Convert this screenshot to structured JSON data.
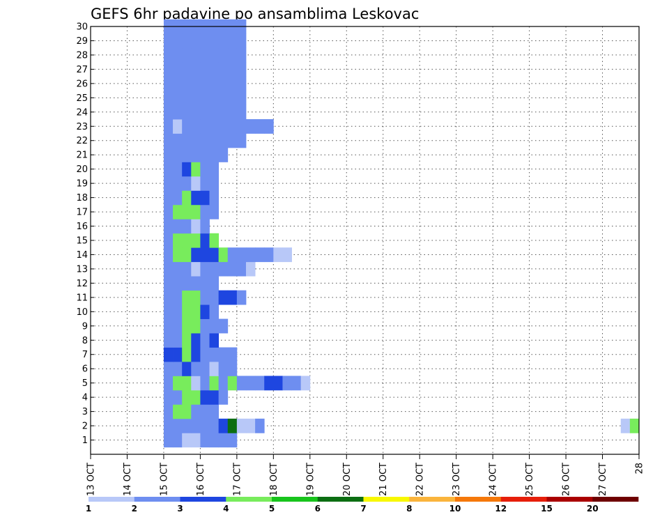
{
  "chart_data": {
    "type": "heatmap",
    "title": "GEFS 6hr padavine po ansamblima Leskovac",
    "x_tick_labels": [
      "13 OCT",
      "14 OCT",
      "15 OCT",
      "16 OCT",
      "17 OCT",
      "18 OCT",
      "19 OCT",
      "20 OCT",
      "21 OCT",
      "22 OCT",
      "23 OCT",
      "24 OCT",
      "25 OCT",
      "26 OCT",
      "27 OCT",
      "28"
    ],
    "x_range_days": [
      0,
      15
    ],
    "time_step_hours": 6,
    "y_tick_labels": [
      "1",
      "2",
      "3",
      "4",
      "5",
      "6",
      "7",
      "8",
      "9",
      "10",
      "11",
      "12",
      "13",
      "14",
      "15",
      "16",
      "17",
      "18",
      "19",
      "20",
      "21",
      "22",
      "23",
      "24",
      "25",
      "26",
      "27",
      "28",
      "29",
      "30"
    ],
    "y_range": [
      0,
      30
    ],
    "grid": true,
    "colorbar": {
      "levels": [
        "1",
        "2",
        "3",
        "4",
        "5",
        "6",
        "7",
        "8",
        "10",
        "12",
        "15",
        "20"
      ],
      "colors": [
        "#b8c8f8",
        "#6e8ef0",
        "#1e46e0",
        "#78ec5c",
        "#18c41c",
        "#0c6e12",
        "#f8f800",
        "#fab43c",
        "#f5780a",
        "#e61e0a",
        "#aa0000",
        "#6e0000"
      ]
    },
    "cells": [
      [
        1,
        2.0,
        1
      ],
      [
        1,
        2.25,
        1
      ],
      [
        1,
        2.5,
        0
      ],
      [
        1,
        2.75,
        0
      ],
      [
        1,
        3.0,
        1
      ],
      [
        1,
        3.25,
        1
      ],
      [
        1,
        3.5,
        1
      ],
      [
        1,
        3.75,
        1
      ],
      [
        2,
        2.0,
        1
      ],
      [
        2,
        2.25,
        1
      ],
      [
        2,
        2.5,
        1
      ],
      [
        2,
        2.75,
        1
      ],
      [
        2,
        3.0,
        1
      ],
      [
        2,
        3.25,
        1
      ],
      [
        2,
        3.5,
        2
      ],
      [
        2,
        3.75,
        5
      ],
      [
        2,
        4.0,
        0
      ],
      [
        2,
        4.25,
        0
      ],
      [
        2,
        4.5,
        1
      ],
      [
        2,
        14.5,
        0
      ],
      [
        2,
        14.75,
        3
      ],
      [
        3,
        2.0,
        1
      ],
      [
        3,
        2.25,
        3
      ],
      [
        3,
        2.5,
        3
      ],
      [
        3,
        2.75,
        1
      ],
      [
        3,
        3.0,
        1
      ],
      [
        3,
        3.25,
        1
      ],
      [
        4,
        2.0,
        1
      ],
      [
        4,
        2.25,
        1
      ],
      [
        4,
        2.5,
        3
      ],
      [
        4,
        2.75,
        3
      ],
      [
        4,
        3.0,
        2
      ],
      [
        4,
        3.25,
        2
      ],
      [
        4,
        3.5,
        1
      ],
      [
        5,
        2.0,
        1
      ],
      [
        5,
        2.25,
        3
      ],
      [
        5,
        2.5,
        3
      ],
      [
        5,
        2.75,
        0
      ],
      [
        5,
        3.0,
        1
      ],
      [
        5,
        3.25,
        3
      ],
      [
        5,
        3.5,
        1
      ],
      [
        5,
        3.75,
        3
      ],
      [
        5,
        4.0,
        1
      ],
      [
        5,
        4.25,
        1
      ],
      [
        5,
        4.5,
        1
      ],
      [
        5,
        4.75,
        2
      ],
      [
        5,
        5.0,
        2
      ],
      [
        5,
        5.25,
        1
      ],
      [
        5,
        5.5,
        1
      ],
      [
        5,
        5.75,
        0
      ],
      [
        6,
        2.0,
        1
      ],
      [
        6,
        2.25,
        1
      ],
      [
        6,
        2.5,
        2
      ],
      [
        6,
        2.75,
        1
      ],
      [
        6,
        3.0,
        1
      ],
      [
        6,
        3.25,
        0
      ],
      [
        6,
        3.5,
        1
      ],
      [
        6,
        3.75,
        1
      ],
      [
        7,
        2.0,
        2
      ],
      [
        7,
        2.25,
        2
      ],
      [
        7,
        2.5,
        3
      ],
      [
        7,
        2.75,
        2
      ],
      [
        7,
        3.0,
        1
      ],
      [
        7,
        3.25,
        1
      ],
      [
        7,
        3.5,
        1
      ],
      [
        7,
        3.75,
        1
      ],
      [
        8,
        2.0,
        1
      ],
      [
        8,
        2.25,
        1
      ],
      [
        8,
        2.5,
        3
      ],
      [
        8,
        2.75,
        2
      ],
      [
        8,
        3.0,
        1
      ],
      [
        8,
        3.25,
        2
      ],
      [
        9,
        2.0,
        1
      ],
      [
        9,
        2.25,
        1
      ],
      [
        9,
        2.5,
        3
      ],
      [
        9,
        2.75,
        3
      ],
      [
        9,
        3.0,
        1
      ],
      [
        9,
        3.25,
        1
      ],
      [
        9,
        3.5,
        1
      ],
      [
        10,
        2.0,
        1
      ],
      [
        10,
        2.25,
        1
      ],
      [
        10,
        2.5,
        3
      ],
      [
        10,
        2.75,
        3
      ],
      [
        10,
        3.0,
        2
      ],
      [
        10,
        3.25,
        1
      ],
      [
        11,
        2.0,
        1
      ],
      [
        11,
        2.25,
        1
      ],
      [
        11,
        2.5,
        3
      ],
      [
        11,
        2.75,
        3
      ],
      [
        11,
        3.0,
        1
      ],
      [
        11,
        3.25,
        1
      ],
      [
        11,
        3.5,
        2
      ],
      [
        11,
        3.75,
        2
      ],
      [
        11,
        4.0,
        1
      ],
      [
        12,
        2.0,
        1
      ],
      [
        12,
        2.25,
        1
      ],
      [
        12,
        2.5,
        1
      ],
      [
        12,
        2.75,
        1
      ],
      [
        12,
        3.0,
        1
      ],
      [
        12,
        3.25,
        1
      ],
      [
        13,
        2.0,
        1
      ],
      [
        13,
        2.25,
        1
      ],
      [
        13,
        2.5,
        1
      ],
      [
        13,
        2.75,
        0
      ],
      [
        13,
        3.0,
        1
      ],
      [
        13,
        3.25,
        1
      ],
      [
        13,
        3.5,
        1
      ],
      [
        13,
        3.75,
        1
      ],
      [
        13,
        4.0,
        1
      ],
      [
        13,
        4.25,
        0
      ],
      [
        14,
        2.0,
        1
      ],
      [
        14,
        2.25,
        3
      ],
      [
        14,
        2.5,
        3
      ],
      [
        14,
        2.75,
        2
      ],
      [
        14,
        3.0,
        2
      ],
      [
        14,
        3.25,
        2
      ],
      [
        14,
        3.5,
        3
      ],
      [
        14,
        3.75,
        1
      ],
      [
        14,
        4.0,
        1
      ],
      [
        14,
        4.25,
        1
      ],
      [
        14,
        4.5,
        1
      ],
      [
        14,
        4.75,
        1
      ],
      [
        14,
        5.0,
        0
      ],
      [
        14,
        5.25,
        0
      ],
      [
        15,
        2.0,
        1
      ],
      [
        15,
        2.25,
        3
      ],
      [
        15,
        2.5,
        3
      ],
      [
        15,
        2.75,
        3
      ],
      [
        15,
        3.0,
        2
      ],
      [
        15,
        3.25,
        3
      ],
      [
        16,
        2.0,
        1
      ],
      [
        16,
        2.25,
        1
      ],
      [
        16,
        2.5,
        1
      ],
      [
        16,
        2.75,
        0
      ],
      [
        16,
        3.0,
        1
      ],
      [
        17,
        2.0,
        1
      ],
      [
        17,
        2.25,
        3
      ],
      [
        17,
        2.5,
        3
      ],
      [
        17,
        2.75,
        3
      ],
      [
        17,
        3.0,
        1
      ],
      [
        17,
        3.25,
        1
      ],
      [
        18,
        2.0,
        1
      ],
      [
        18,
        2.25,
        1
      ],
      [
        18,
        2.5,
        3
      ],
      [
        18,
        2.75,
        2
      ],
      [
        18,
        3.0,
        2
      ],
      [
        18,
        3.25,
        1
      ],
      [
        19,
        2.0,
        1
      ],
      [
        19,
        2.25,
        1
      ],
      [
        19,
        2.5,
        1
      ],
      [
        19,
        2.75,
        0
      ],
      [
        19,
        3.0,
        1
      ],
      [
        19,
        3.25,
        1
      ],
      [
        20,
        2.0,
        1
      ],
      [
        20,
        2.25,
        1
      ],
      [
        20,
        2.5,
        2
      ],
      [
        20,
        2.75,
        3
      ],
      [
        20,
        3.0,
        1
      ],
      [
        20,
        3.25,
        1
      ],
      [
        21,
        2.0,
        1
      ],
      [
        21,
        2.25,
        1
      ],
      [
        21,
        2.5,
        1
      ],
      [
        21,
        2.75,
        1
      ],
      [
        21,
        3.0,
        1
      ],
      [
        21,
        3.25,
        1
      ],
      [
        21,
        3.5,
        1
      ],
      [
        22,
        2.0,
        1
      ],
      [
        22,
        2.25,
        1
      ],
      [
        22,
        2.5,
        1
      ],
      [
        22,
        2.75,
        1
      ],
      [
        22,
        3.0,
        1
      ],
      [
        22,
        3.25,
        1
      ],
      [
        22,
        3.5,
        1
      ],
      [
        22,
        3.75,
        1
      ],
      [
        22,
        4.0,
        1
      ],
      [
        23,
        2.0,
        1
      ],
      [
        23,
        2.25,
        0
      ],
      [
        23,
        2.5,
        1
      ],
      [
        23,
        2.75,
        1
      ],
      [
        23,
        3.0,
        1
      ],
      [
        23,
        3.25,
        1
      ],
      [
        23,
        3.5,
        1
      ],
      [
        23,
        3.75,
        1
      ],
      [
        23,
        4.0,
        1
      ],
      [
        23,
        4.25,
        1
      ],
      [
        23,
        4.5,
        1
      ],
      [
        23,
        4.75,
        1
      ],
      [
        24,
        2.0,
        1
      ],
      [
        24,
        2.25,
        1
      ],
      [
        24,
        2.5,
        1
      ],
      [
        24,
        2.75,
        1
      ],
      [
        24,
        3.0,
        1
      ],
      [
        24,
        3.25,
        1
      ],
      [
        24,
        3.5,
        1
      ],
      [
        24,
        3.75,
        1
      ],
      [
        24,
        4.0,
        1
      ],
      [
        25,
        2.0,
        1
      ],
      [
        25,
        2.25,
        1
      ],
      [
        25,
        2.5,
        1
      ],
      [
        25,
        2.75,
        1
      ],
      [
        25,
        3.0,
        1
      ],
      [
        25,
        3.25,
        1
      ],
      [
        25,
        3.5,
        1
      ],
      [
        25,
        3.75,
        1
      ],
      [
        25,
        4.0,
        1
      ],
      [
        26,
        2.0,
        1
      ],
      [
        26,
        2.25,
        1
      ],
      [
        26,
        2.5,
        1
      ],
      [
        26,
        2.75,
        1
      ],
      [
        26,
        3.0,
        1
      ],
      [
        26,
        3.25,
        1
      ],
      [
        26,
        3.5,
        1
      ],
      [
        26,
        3.75,
        1
      ],
      [
        26,
        4.0,
        1
      ],
      [
        27,
        2.0,
        1
      ],
      [
        27,
        2.25,
        1
      ],
      [
        27,
        2.5,
        1
      ],
      [
        27,
        2.75,
        1
      ],
      [
        27,
        3.0,
        1
      ],
      [
        27,
        3.25,
        1
      ],
      [
        27,
        3.5,
        1
      ],
      [
        27,
        3.75,
        1
      ],
      [
        27,
        4.0,
        1
      ],
      [
        28,
        2.0,
        1
      ],
      [
        28,
        2.25,
        1
      ],
      [
        28,
        2.5,
        1
      ],
      [
        28,
        2.75,
        1
      ],
      [
        28,
        3.0,
        1
      ],
      [
        28,
        3.25,
        1
      ],
      [
        28,
        3.5,
        1
      ],
      [
        28,
        3.75,
        1
      ],
      [
        28,
        4.0,
        1
      ],
      [
        29,
        2.0,
        1
      ],
      [
        29,
        2.25,
        1
      ],
      [
        29,
        2.5,
        1
      ],
      [
        29,
        2.75,
        1
      ],
      [
        29,
        3.0,
        1
      ],
      [
        29,
        3.25,
        1
      ],
      [
        29,
        3.5,
        1
      ],
      [
        29,
        3.75,
        1
      ],
      [
        29,
        4.0,
        1
      ],
      [
        30,
        2.0,
        1
      ],
      [
        30,
        2.25,
        1
      ],
      [
        30,
        2.5,
        1
      ],
      [
        30,
        2.75,
        1
      ],
      [
        30,
        3.0,
        1
      ],
      [
        30,
        3.25,
        1
      ],
      [
        30,
        3.5,
        1
      ],
      [
        30,
        3.75,
        1
      ],
      [
        30,
        4.0,
        1
      ]
    ]
  }
}
